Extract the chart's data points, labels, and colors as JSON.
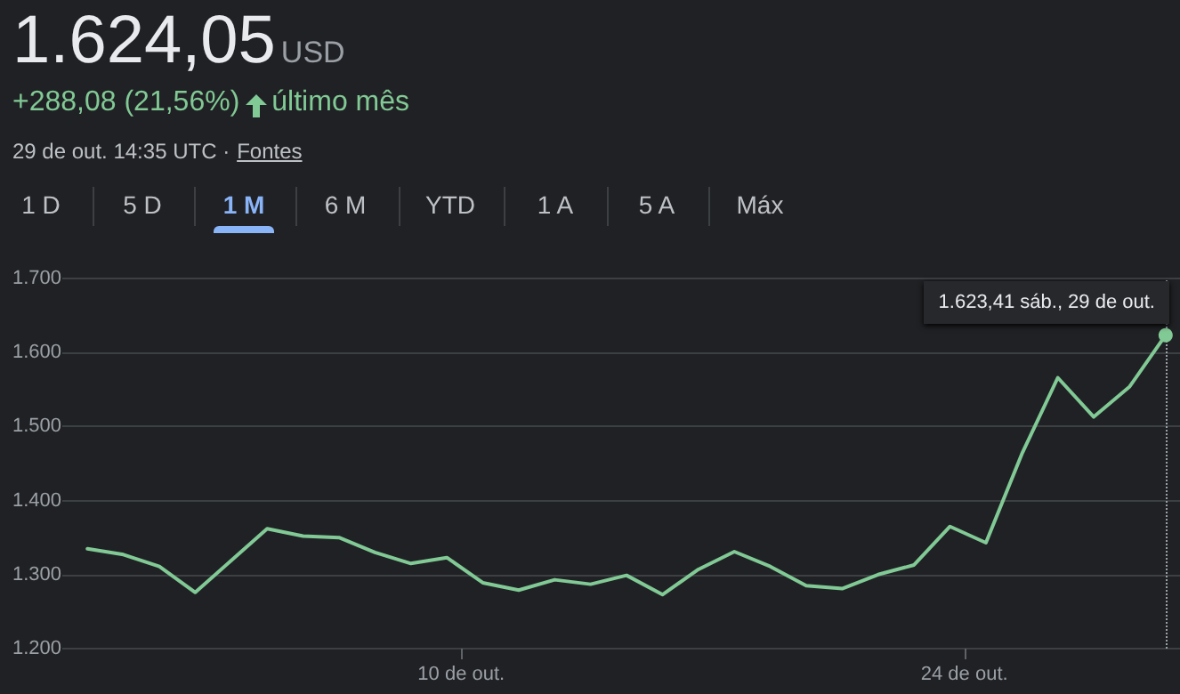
{
  "chart_data": {
    "type": "line",
    "title": "1.624,05",
    "subtitle": "+288,08 (21,56%)",
    "annotations": [
      "USD",
      "último mês",
      "29 de out. 14:35 UTC ·",
      "Fontes",
      "1 D",
      "5 D",
      "1 M",
      "6 M",
      "YTD",
      "1 A",
      "5 A",
      "Máx",
      {
        "text": "1.623,41  sáb., 29 de out.",
        "x": 29.6,
        "y": 1623.41
      }
    ],
    "series": [
      {
        "color": "#81c995",
        "x": [
          -0.4,
          0.6,
          1.6,
          2.6,
          3.6,
          4.6,
          5.6,
          6.6,
          7.6,
          8.6,
          9.6,
          10.6,
          11.6,
          12.6,
          13.6,
          14.6,
          15.6,
          16.6,
          17.6,
          18.6,
          19.6,
          20.6,
          21.6,
          22.6,
          23.6,
          24.6,
          25.6,
          26.6,
          27.6,
          28.6,
          29.6
        ],
        "values": [
          1335,
          1327,
          1311,
          1276,
          1319,
          1362,
          1352,
          1350,
          1330,
          1315,
          1323,
          1289,
          1279,
          1293,
          1287,
          1299,
          1273,
          1307,
          1331,
          1311,
          1285,
          1281,
          1300,
          1313,
          1365,
          1343,
          1463,
          1566,
          1513,
          1554,
          1623.41
        ]
      }
    ],
    "xlim": [
      -1.1,
      30
    ],
    "xticks": [
      {
        "value": 10,
        "label": "10 de out."
      },
      {
        "value": 24,
        "label": "24 de out."
      }
    ],
    "ylim": [
      1200,
      1700
    ],
    "yticks": [
      {
        "value": 1200,
        "label": "1.200"
      },
      {
        "value": 1300,
        "label": "1.300"
      },
      {
        "value": 1400,
        "label": "1.400"
      },
      {
        "value": 1500,
        "label": "1.500"
      },
      {
        "value": 1600,
        "label": "1.600"
      },
      {
        "value": 1700,
        "label": "1.700"
      }
    ],
    "ref_lines": [
      {
        "axis": "x",
        "value": 29.6,
        "line_style": "dotted",
        "color": "#9aa0a6"
      }
    ],
    "grid": "y",
    "marker": "none",
    "line_style": "solid"
  }
}
